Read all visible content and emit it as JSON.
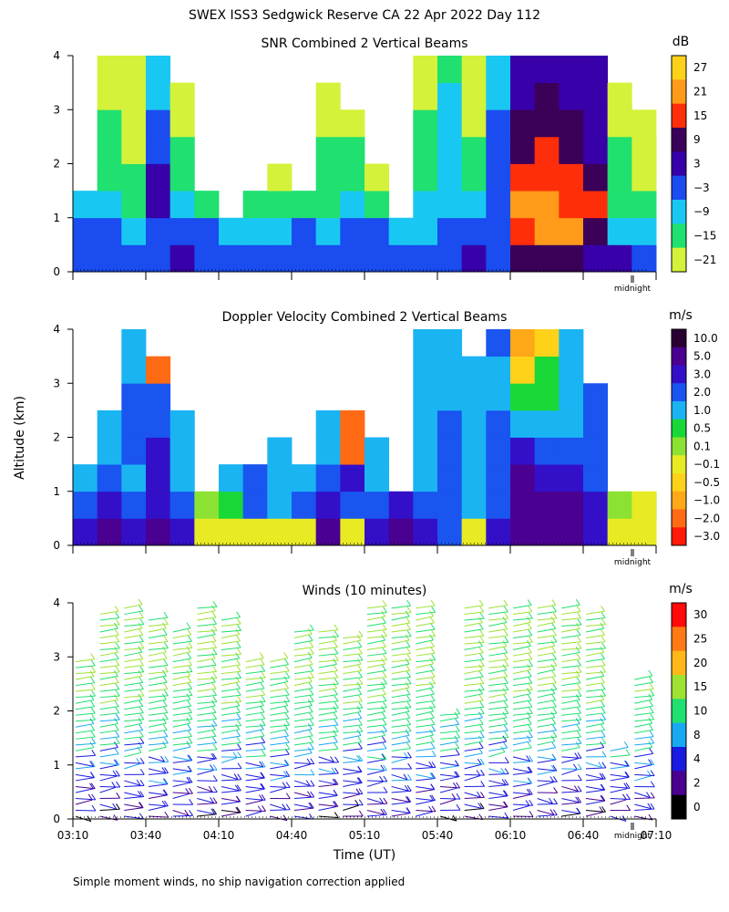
{
  "header": {
    "title": "SWEX ISS3 Sedgwick Reserve CA  22 Apr 2022 Day 112"
  },
  "axes": {
    "ylabel": "Altitude (km)",
    "xlabel": "Time (UT)",
    "y_ticks": [
      "0",
      "1",
      "2",
      "3",
      "4"
    ],
    "x_ticks": [
      "03:10",
      "03:40",
      "04:10",
      "04:40",
      "05:10",
      "05:40",
      "06:10",
      "06:40",
      "07:10"
    ],
    "midnight_label": "midnight"
  },
  "footer": {
    "note": "Simple moment winds, no ship navigation correction applied"
  },
  "chart_data": [
    {
      "type": "heatmap",
      "title": "SNR Combined 2 Vertical Beams",
      "unit": "dB",
      "xlim": [
        "03:10",
        "07:10"
      ],
      "ylim": [
        0,
        4
      ],
      "colorbar_labels": [
        "27",
        "21",
        "15",
        "9",
        "3",
        "−3",
        "−9",
        "−15",
        "−21"
      ],
      "colorbar_colors": [
        "#ffd21a",
        "#ff9b18",
        "#ff2e0a",
        "#3b0058",
        "#3700a8",
        "#1a4cf0",
        "#19c8f2",
        "#20e070",
        "#d4f23a"
      ],
      "x": [
        "03:10",
        "03:20",
        "03:30",
        "03:40",
        "03:50",
        "04:00",
        "04:10",
        "04:20",
        "04:30",
        "04:40",
        "04:50",
        "05:00",
        "05:10",
        "05:20",
        "05:30",
        "05:40",
        "05:50",
        "06:00",
        "06:10",
        "06:20",
        "06:30",
        "06:40",
        "06:50",
        "07:00",
        "07:10"
      ],
      "y": [
        0.25,
        0.75,
        1.25,
        1.75,
        2.25,
        2.75,
        3.25,
        3.75
      ],
      "z": [
        [
          1,
          2,
          0,
          2,
          3,
          2,
          0,
          1,
          2,
          0,
          2,
          1,
          2,
          1,
          2,
          1,
          3,
          2,
          9,
          9,
          9,
          3,
          3,
          2,
          2
        ],
        [
          -3,
          1,
          -6,
          2,
          1,
          -3,
          -9,
          -9,
          -6,
          -3,
          -6,
          -3,
          -3,
          -9,
          -6,
          -3,
          -3,
          -3,
          18,
          23,
          21,
          12,
          -6,
          -9,
          -6
        ],
        [
          -9,
          -6,
          -12,
          3,
          -6,
          -12,
          null,
          -15,
          -12,
          -15,
          -12,
          -9,
          -15,
          null,
          -9,
          -6,
          -9,
          -3,
          24,
          21,
          18,
          15,
          -12,
          -15,
          -12
        ],
        [
          null,
          -12,
          -15,
          3,
          -12,
          null,
          null,
          null,
          -18,
          null,
          -15,
          -12,
          -18,
          null,
          -12,
          -6,
          -12,
          -3,
          15,
          18,
          15,
          9,
          -15,
          -18,
          -18
        ],
        [
          null,
          -12,
          -18,
          0,
          -15,
          null,
          null,
          null,
          null,
          null,
          -15,
          -15,
          null,
          null,
          -15,
          -6,
          -15,
          0,
          12,
          18,
          12,
          6,
          -15,
          -21,
          -21
        ],
        [
          null,
          -15,
          -18,
          -3,
          -18,
          null,
          null,
          null,
          null,
          null,
          -18,
          -18,
          null,
          null,
          -15,
          -9,
          -18,
          -3,
          9,
          12,
          9,
          3,
          -18,
          -21,
          null
        ],
        [
          null,
          -18,
          -21,
          -6,
          -21,
          null,
          null,
          null,
          null,
          null,
          -21,
          null,
          null,
          null,
          -18,
          -9,
          -21,
          -6,
          6,
          9,
          6,
          3,
          -21,
          null,
          null
        ],
        [
          null,
          -18,
          -21,
          -9,
          null,
          null,
          null,
          null,
          null,
          null,
          null,
          null,
          null,
          null,
          -21,
          -12,
          -21,
          -9,
          6,
          6,
          6,
          3,
          null,
          null,
          null
        ]
      ]
    },
    {
      "type": "heatmap",
      "title": "Doppler Velocity Combined 2 Vertical Beams",
      "unit": "m/s",
      "xlim": [
        "03:10",
        "07:10"
      ],
      "ylim": [
        0,
        4
      ],
      "colorbar_labels": [
        "10.0",
        "5.0",
        "3.0",
        "2.0",
        "1.0",
        "0.5",
        "0.1",
        "−0.1",
        "−0.5",
        "−1.0",
        "−2.0",
        "−3.0"
      ],
      "colorbar_colors": [
        "#2a0032",
        "#4a0090",
        "#3310c8",
        "#1a55f0",
        "#1ab4f2",
        "#18d838",
        "#8ce232",
        "#e8ea24",
        "#ffd21a",
        "#ffa818",
        "#ff6a14",
        "#ff1a0a"
      ],
      "x": [
        "03:10",
        "03:20",
        "03:30",
        "03:40",
        "03:50",
        "04:00",
        "04:10",
        "04:20",
        "04:30",
        "04:40",
        "04:50",
        "05:00",
        "05:10",
        "05:20",
        "05:30",
        "05:40",
        "05:50",
        "06:00",
        "06:10",
        "06:20",
        "06:30",
        "06:40",
        "06:50",
        "07:00",
        "07:10"
      ],
      "y": [
        0.25,
        0.75,
        1.25,
        1.75,
        2.25,
        2.75,
        3.25,
        3.75
      ],
      "z": [
        [
          3.0,
          5.0,
          3.0,
          5.0,
          3.0,
          -0.1,
          -0.1,
          -0.1,
          -0.1,
          -0.1,
          5.0,
          -0.1,
          3.0,
          5.0,
          3.0,
          2.0,
          -0.1,
          3.0,
          5.0,
          5.0,
          5.0,
          3.0,
          -0.1,
          -0.1,
          -0.1
        ],
        [
          2.0,
          3.0,
          2.0,
          3.0,
          2.0,
          0.1,
          0.5,
          2.0,
          1.0,
          2.0,
          3.0,
          2.0,
          2.0,
          3.0,
          2.0,
          2.0,
          1.0,
          2.0,
          5.0,
          5.0,
          5.0,
          3.0,
          0.1,
          -0.1,
          0.1
        ],
        [
          1.0,
          2.0,
          1.0,
          3.0,
          1.0,
          null,
          1.0,
          2.0,
          1.0,
          1.0,
          2.0,
          3.0,
          1.0,
          null,
          1.0,
          2.0,
          1.0,
          2.0,
          5.0,
          3.0,
          3.0,
          2.0,
          null,
          null,
          null
        ],
        [
          null,
          1.0,
          2.0,
          3.0,
          1.0,
          null,
          null,
          null,
          1.0,
          null,
          1.0,
          -2.0,
          1.0,
          null,
          1.0,
          2.0,
          1.0,
          2.0,
          3.0,
          2.0,
          2.0,
          2.0,
          null,
          null,
          null
        ],
        [
          null,
          1.0,
          2.0,
          2.0,
          1.0,
          null,
          null,
          null,
          null,
          null,
          1.0,
          -2.0,
          null,
          null,
          1.0,
          2.0,
          1.0,
          2.0,
          1.0,
          1.0,
          1.0,
          2.0,
          null,
          null,
          null
        ],
        [
          null,
          null,
          2.0,
          2.0,
          null,
          null,
          null,
          null,
          null,
          null,
          null,
          null,
          null,
          null,
          1.0,
          1.0,
          1.0,
          1.0,
          0.5,
          0.5,
          1.0,
          2.0,
          null,
          null,
          null
        ],
        [
          null,
          null,
          1.0,
          -2.0,
          null,
          null,
          null,
          null,
          null,
          null,
          null,
          null,
          null,
          null,
          1.0,
          1.0,
          1.0,
          1.0,
          -0.5,
          0.5,
          1.0,
          null,
          null,
          null,
          null
        ],
        [
          null,
          null,
          1.0,
          null,
          null,
          null,
          null,
          null,
          null,
          null,
          null,
          null,
          null,
          null,
          1.0,
          1.0,
          null,
          2.0,
          -1.0,
          -0.5,
          1.0,
          null,
          null,
          null,
          null
        ]
      ]
    },
    {
      "type": "wind-barbs",
      "title": "Winds (10 minutes)",
      "unit": "m/s",
      "xlim": [
        "03:10",
        "07:10"
      ],
      "ylim": [
        0,
        4
      ],
      "colorbar_labels": [
        "30",
        "25",
        "20",
        "15",
        "10",
        "8",
        "4",
        "2",
        "0"
      ],
      "colorbar_colors": [
        "#ff0a0a",
        "#ff7a14",
        "#ffb818",
        "#9ee232",
        "#20e070",
        "#19a8f2",
        "#1a1ae0",
        "#4a0090",
        "#000000"
      ],
      "times": [
        "03:10",
        "03:20",
        "03:30",
        "03:40",
        "03:50",
        "04:00",
        "04:10",
        "04:20",
        "04:30",
        "04:40",
        "04:50",
        "05:00",
        "05:10",
        "05:20",
        "05:30",
        "05:40",
        "05:50",
        "06:00",
        "06:10",
        "06:20",
        "06:30",
        "06:40",
        "06:50",
        "07:00"
      ],
      "max_altitude_km": [
        3.0,
        3.9,
        4.0,
        3.7,
        3.5,
        4.0,
        3.7,
        3.0,
        3.0,
        3.5,
        3.5,
        3.4,
        4.0,
        4.0,
        4.0,
        2.0,
        4.0,
        4.0,
        4.0,
        4.0,
        4.0,
        3.8,
        1.3,
        2.6
      ],
      "low_level_speed_ms": 3,
      "upper_level_speed_ms": 15
    }
  ]
}
